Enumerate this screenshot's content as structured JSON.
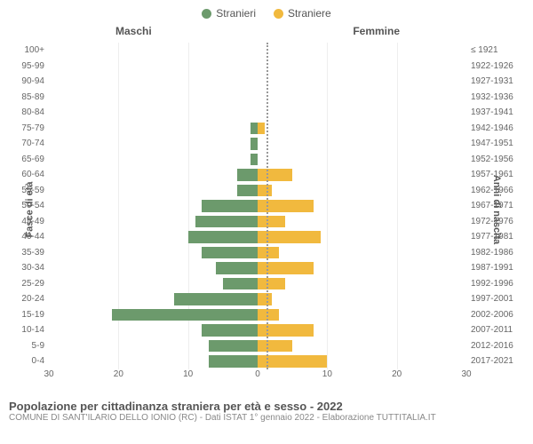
{
  "legend": {
    "male": {
      "label": "Stranieri",
      "color": "#6c9a6c"
    },
    "female": {
      "label": "Straniere",
      "color": "#f1b93e"
    }
  },
  "panels": {
    "left": "Maschi",
    "right": "Femmine"
  },
  "y_titles": {
    "left": "Fasce di età",
    "right": "Anni di nascita"
  },
  "x_axis": {
    "max": 30,
    "ticks": [
      30,
      20,
      10,
      0,
      10,
      20,
      30
    ]
  },
  "title": "Popolazione per cittadinanza straniera per età e sesso - 2022",
  "subtitle": "COMUNE DI SANT'ILARIO DELLO IONIO (RC) - Dati ISTAT 1° gennaio 2022 - Elaborazione TUTTITALIA.IT",
  "colors": {
    "male_bar": "#6c9a6c",
    "female_bar": "#f1b93e",
    "grid": "#eeeeee",
    "center": "#999999"
  },
  "rows": [
    {
      "age": "100+",
      "birth": "≤ 1921",
      "m": 0,
      "f": 0
    },
    {
      "age": "95-99",
      "birth": "1922-1926",
      "m": 0,
      "f": 0
    },
    {
      "age": "90-94",
      "birth": "1927-1931",
      "m": 0,
      "f": 0
    },
    {
      "age": "85-89",
      "birth": "1932-1936",
      "m": 0,
      "f": 0
    },
    {
      "age": "80-84",
      "birth": "1937-1941",
      "m": 0,
      "f": 0
    },
    {
      "age": "75-79",
      "birth": "1942-1946",
      "m": 1,
      "f": 1
    },
    {
      "age": "70-74",
      "birth": "1947-1951",
      "m": 1,
      "f": 0
    },
    {
      "age": "65-69",
      "birth": "1952-1956",
      "m": 1,
      "f": 0
    },
    {
      "age": "60-64",
      "birth": "1957-1961",
      "m": 3,
      "f": 5
    },
    {
      "age": "55-59",
      "birth": "1962-1966",
      "m": 3,
      "f": 2
    },
    {
      "age": "50-54",
      "birth": "1967-1971",
      "m": 8,
      "f": 8
    },
    {
      "age": "45-49",
      "birth": "1972-1976",
      "m": 9,
      "f": 4
    },
    {
      "age": "40-44",
      "birth": "1977-1981",
      "m": 10,
      "f": 9
    },
    {
      "age": "35-39",
      "birth": "1982-1986",
      "m": 8,
      "f": 3
    },
    {
      "age": "30-34",
      "birth": "1987-1991",
      "m": 6,
      "f": 8
    },
    {
      "age": "25-29",
      "birth": "1992-1996",
      "m": 5,
      "f": 4
    },
    {
      "age": "20-24",
      "birth": "1997-2001",
      "m": 12,
      "f": 2
    },
    {
      "age": "15-19",
      "birth": "2002-2006",
      "m": 21,
      "f": 3
    },
    {
      "age": "10-14",
      "birth": "2007-2011",
      "m": 8,
      "f": 8
    },
    {
      "age": "5-9",
      "birth": "2012-2016",
      "m": 7,
      "f": 5
    },
    {
      "age": "0-4",
      "birth": "2017-2021",
      "m": 7,
      "f": 10
    }
  ]
}
